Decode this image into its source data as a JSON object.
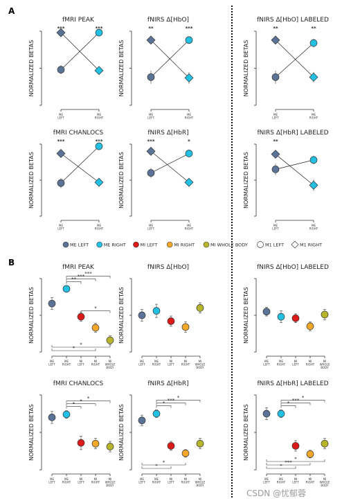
{
  "figure": {
    "panel_a_label": "A",
    "panel_b_label": "B",
    "watermark": "CSDN @忧郁蓉"
  },
  "colors": {
    "ME_LEFT": "#5a7396",
    "ME_RIGHT": "#22c1e4",
    "MI_LEFT": "#dd1a1a",
    "MI_RIGHT": "#f4a82a",
    "MI_WHOLE_BODY": "#b7b52c",
    "axis": "#333333"
  },
  "legend_a": {
    "items": [
      {
        "label": "ME LEFT",
        "color": "#5a7396",
        "marker": "circle"
      },
      {
        "label": "ME RIGHT",
        "color": "#22c1e4",
        "marker": "circle"
      },
      {
        "label": "MI LEFT",
        "color": "#dd1a1a",
        "marker": "circle"
      },
      {
        "label": "MI RIGHT",
        "color": "#f4a82a",
        "marker": "circle"
      },
      {
        "label": "MI WHOLE BODY",
        "color": "#b7b52c",
        "marker": "circle"
      }
    ],
    "marker_items": [
      {
        "label": "M1 LEFT",
        "marker": "circle"
      },
      {
        "label": "M1 RIGHT",
        "marker": "diamond"
      }
    ]
  },
  "chart_data": [
    {
      "id": "a1",
      "type": "scatter",
      "section": "A",
      "title": "fMRI PEAK",
      "ylabel": "NORMALIZED BETAS",
      "categories": [
        "ME LEFT",
        "ME RIGHT"
      ],
      "ylim": [
        0,
        1
      ],
      "series": [
        {
          "marker": "circle",
          "colors": [
            "#5a7396",
            "#22c1e4"
          ],
          "values": [
            0.48,
            0.98
          ],
          "errors": [
            0.06,
            0.03
          ]
        },
        {
          "marker": "diamond",
          "colors": [
            "#5a7396",
            "#22c1e4"
          ],
          "values": [
            0.98,
            0.47
          ],
          "errors": [
            0.03,
            0.04
          ]
        }
      ],
      "sig": [
        "***",
        "***"
      ]
    },
    {
      "id": "a2",
      "type": "scatter",
      "section": "A",
      "title": "fNIRS Δ[HbO]",
      "ylabel": "NORMALIZED BETAS",
      "categories": [
        "ME LEFT",
        "ME RIGHT"
      ],
      "ylim": [
        0,
        1
      ],
      "series": [
        {
          "marker": "circle",
          "colors": [
            "#5a7396",
            "#22c1e4"
          ],
          "values": [
            0.38,
            0.88
          ],
          "errors": [
            0.09,
            0.05
          ]
        },
        {
          "marker": "diamond",
          "colors": [
            "#5a7396",
            "#22c1e4"
          ],
          "values": [
            0.88,
            0.37
          ],
          "errors": [
            0.05,
            0.08
          ]
        }
      ],
      "sig": [
        "**",
        "***"
      ]
    },
    {
      "id": "a3",
      "type": "scatter",
      "section": "A",
      "title": "fNIRS Δ[HbO] LABELED",
      "ylabel": "NORMALIZED BETAS",
      "categories": [
        "ME LEFT",
        "ME RIGHT"
      ],
      "ylim": [
        0,
        1
      ],
      "series": [
        {
          "marker": "circle",
          "colors": [
            "#5a7396",
            "#22c1e4"
          ],
          "values": [
            0.38,
            0.84
          ],
          "errors": [
            0.09,
            0.06
          ]
        },
        {
          "marker": "diamond",
          "colors": [
            "#5a7396",
            "#22c1e4"
          ],
          "values": [
            0.88,
            0.38
          ],
          "errors": [
            0.05,
            0.07
          ]
        }
      ],
      "sig": [
        "**",
        "**"
      ]
    },
    {
      "id": "a4",
      "type": "scatter",
      "section": "A",
      "title": "fMRI CHANLOCS",
      "ylabel": "NORMALIZED BETAS",
      "categories": [
        "ME LEFT",
        "ME RIGHT"
      ],
      "ylim": [
        0,
        1
      ],
      "series": [
        {
          "marker": "circle",
          "colors": [
            "#5a7396",
            "#22c1e4"
          ],
          "values": [
            0.46,
            0.97
          ],
          "errors": [
            0.07,
            0.03
          ]
        },
        {
          "marker": "diamond",
          "colors": [
            "#5a7396",
            "#22c1e4"
          ],
          "values": [
            0.87,
            0.47
          ],
          "errors": [
            0.05,
            0.05
          ]
        }
      ],
      "sig": [
        "***",
        "***"
      ]
    },
    {
      "id": "a5",
      "type": "scatter",
      "section": "A",
      "title": "fNIRS Δ[HbR]",
      "ylabel": "NORMALIZED BETAS",
      "categories": [
        "ME LEFT",
        "ME RIGHT"
      ],
      "ylim": [
        0,
        1
      ],
      "series": [
        {
          "marker": "circle",
          "colors": [
            "#5a7396",
            "#22c1e4"
          ],
          "values": [
            0.6,
            0.87
          ],
          "errors": [
            0.07,
            0.05
          ]
        },
        {
          "marker": "diamond",
          "colors": [
            "#5a7396",
            "#22c1e4"
          ],
          "values": [
            0.9,
            0.47
          ],
          "errors": [
            0.04,
            0.05
          ]
        }
      ],
      "sig": [
        "***",
        "*"
      ]
    },
    {
      "id": "a6",
      "type": "scatter",
      "section": "A",
      "title": "fNIRS Δ[HbR] LABELED",
      "ylabel": "NORMALIZED BETAS",
      "categories": [
        "ME LEFT",
        "ME RIGHT"
      ],
      "ylim": [
        0,
        1
      ],
      "series": [
        {
          "marker": "circle",
          "colors": [
            "#5a7396",
            "#22c1e4"
          ],
          "values": [
            0.65,
            0.78
          ],
          "errors": [
            0.08,
            0.06
          ]
        },
        {
          "marker": "diamond",
          "colors": [
            "#5a7396",
            "#22c1e4"
          ],
          "values": [
            0.86,
            0.43
          ],
          "errors": [
            0.05,
            0.08
          ]
        }
      ],
      "sig": [
        "**",
        ""
      ]
    },
    {
      "id": "b1",
      "type": "scatter",
      "section": "B",
      "title": "fMRI PEAK",
      "ylabel": "NORMALIZED BETAS",
      "categories": [
        "ME LEFT",
        "ME RIGHT",
        "MI LEFT",
        "MI RIGHT",
        "MI WHOLE BODY"
      ],
      "ylim": [
        0,
        1
      ],
      "series": [
        {
          "marker": "circle",
          "colors": [
            "#5a7396",
            "#22c1e4",
            "#dd1a1a",
            "#f4a82a",
            "#b7b52c"
          ],
          "values": [
            0.66,
            0.86,
            0.48,
            0.33,
            0.16
          ],
          "errors": [
            0.08,
            0.04,
            0.06,
            0.06,
            0.06
          ]
        }
      ],
      "brackets_top": [
        {
          "from": 1,
          "to": 2,
          "label": "**"
        },
        {
          "from": 1,
          "to": 3,
          "label": "***"
        },
        {
          "from": 1,
          "to": 4,
          "label": "***"
        },
        {
          "from": 2,
          "to": 4,
          "label": "*"
        }
      ],
      "brackets_bottom": [
        {
          "from": 0,
          "to": 3,
          "label": "*"
        },
        {
          "from": 0,
          "to": 4,
          "label": "*"
        }
      ]
    },
    {
      "id": "b2",
      "type": "scatter",
      "section": "B",
      "title": "fNIRS Δ[HbO]",
      "ylabel": "NORMALIZED BETAS",
      "categories": [
        "ME LEFT",
        "ME RIGHT",
        "MI LEFT",
        "MI RIGHT",
        "MI WHOLE BODY"
      ],
      "ylim": [
        0,
        1
      ],
      "series": [
        {
          "marker": "circle",
          "colors": [
            "#5a7396",
            "#22c1e4",
            "#dd1a1a",
            "#f4a82a",
            "#b7b52c"
          ],
          "values": [
            0.5,
            0.56,
            0.42,
            0.34,
            0.6
          ],
          "errors": [
            0.08,
            0.09,
            0.07,
            0.07,
            0.07
          ]
        }
      ],
      "brackets_top": [],
      "brackets_bottom": []
    },
    {
      "id": "b3",
      "type": "scatter",
      "section": "B",
      "title": "fNIRS Δ[HbO] LABELED",
      "ylabel": "NORMALIZED BETAS",
      "categories": [
        "ME LEFT",
        "ME RIGHT",
        "MI LEFT",
        "MI RIGHT",
        "MI WHOLE BODY"
      ],
      "ylim": [
        0,
        1
      ],
      "series": [
        {
          "marker": "circle",
          "colors": [
            "#5a7396",
            "#22c1e4",
            "#dd1a1a",
            "#f4a82a",
            "#b7b52c"
          ],
          "values": [
            0.55,
            0.48,
            0.46,
            0.35,
            0.51
          ],
          "errors": [
            0.06,
            0.08,
            0.06,
            0.06,
            0.07
          ]
        }
      ],
      "brackets_top": [],
      "brackets_bottom": []
    },
    {
      "id": "b4",
      "type": "scatter",
      "section": "B",
      "title": "fMRI CHANLOCS",
      "ylabel": "NORMALIZED BETAS",
      "categories": [
        "ME LEFT",
        "ME RIGHT",
        "MI LEFT",
        "MI RIGHT",
        "MI WHOLE BODY"
      ],
      "ylim": [
        0,
        1
      ],
      "series": [
        {
          "marker": "circle",
          "colors": [
            "#5a7396",
            "#22c1e4",
            "#dd1a1a",
            "#f4a82a",
            "#b7b52c"
          ],
          "values": [
            0.7,
            0.74,
            0.36,
            0.35,
            0.31
          ],
          "errors": [
            0.08,
            0.05,
            0.09,
            0.07,
            0.07
          ]
        }
      ],
      "brackets_top": [
        {
          "from": 1,
          "to": 2,
          "label": "*"
        },
        {
          "from": 1,
          "to": 3,
          "label": "*"
        },
        {
          "from": 1,
          "to": 4,
          "label": "*"
        }
      ],
      "brackets_bottom": []
    },
    {
      "id": "b5",
      "type": "scatter",
      "section": "B",
      "title": "fNIRS Δ[HbR]",
      "ylabel": "NORMALIZED BETAS",
      "categories": [
        "ME LEFT",
        "ME RIGHT",
        "MI LEFT",
        "MI RIGHT",
        "MI WHOLE BODY"
      ],
      "ylim": [
        0,
        1
      ],
      "series": [
        {
          "marker": "circle",
          "colors": [
            "#5a7396",
            "#22c1e4",
            "#dd1a1a",
            "#f4a82a",
            "#b7b52c"
          ],
          "values": [
            0.66,
            0.75,
            0.32,
            0.22,
            0.35
          ],
          "errors": [
            0.07,
            0.05,
            0.06,
            0.05,
            0.07
          ]
        }
      ],
      "brackets_top": [
        {
          "from": 1,
          "to": 2,
          "label": "*"
        },
        {
          "from": 1,
          "to": 3,
          "label": "***"
        },
        {
          "from": 1,
          "to": 4,
          "label": "*"
        }
      ],
      "brackets_bottom": [
        {
          "from": 0,
          "to": 2,
          "label": "*"
        },
        {
          "from": 0,
          "to": 3,
          "label": "*"
        }
      ]
    },
    {
      "id": "b6",
      "type": "scatter",
      "section": "B",
      "title": "fNIRS Δ[HbR] LABELED",
      "ylabel": "NORMALIZED BETAS",
      "categories": [
        "ME LEFT",
        "ME RIGHT",
        "MI LEFT",
        "MI RIGHT",
        "MI WHOLE BODY"
      ],
      "ylim": [
        0,
        1
      ],
      "series": [
        {
          "marker": "circle",
          "colors": [
            "#5a7396",
            "#22c1e4",
            "#dd1a1a",
            "#f4a82a",
            "#b7b52c"
          ],
          "values": [
            0.75,
            0.75,
            0.32,
            0.21,
            0.35
          ],
          "errors": [
            0.08,
            0.05,
            0.07,
            0.05,
            0.07
          ]
        }
      ],
      "brackets_top": [
        {
          "from": 1,
          "to": 2,
          "label": "*"
        },
        {
          "from": 1,
          "to": 3,
          "label": "***"
        },
        {
          "from": 1,
          "to": 4,
          "label": "*"
        }
      ],
      "brackets_bottom": [
        {
          "from": 0,
          "to": 2,
          "label": "*"
        },
        {
          "from": 0,
          "to": 3,
          "label": "***"
        },
        {
          "from": 0,
          "to": 4,
          "label": "*"
        }
      ]
    }
  ]
}
